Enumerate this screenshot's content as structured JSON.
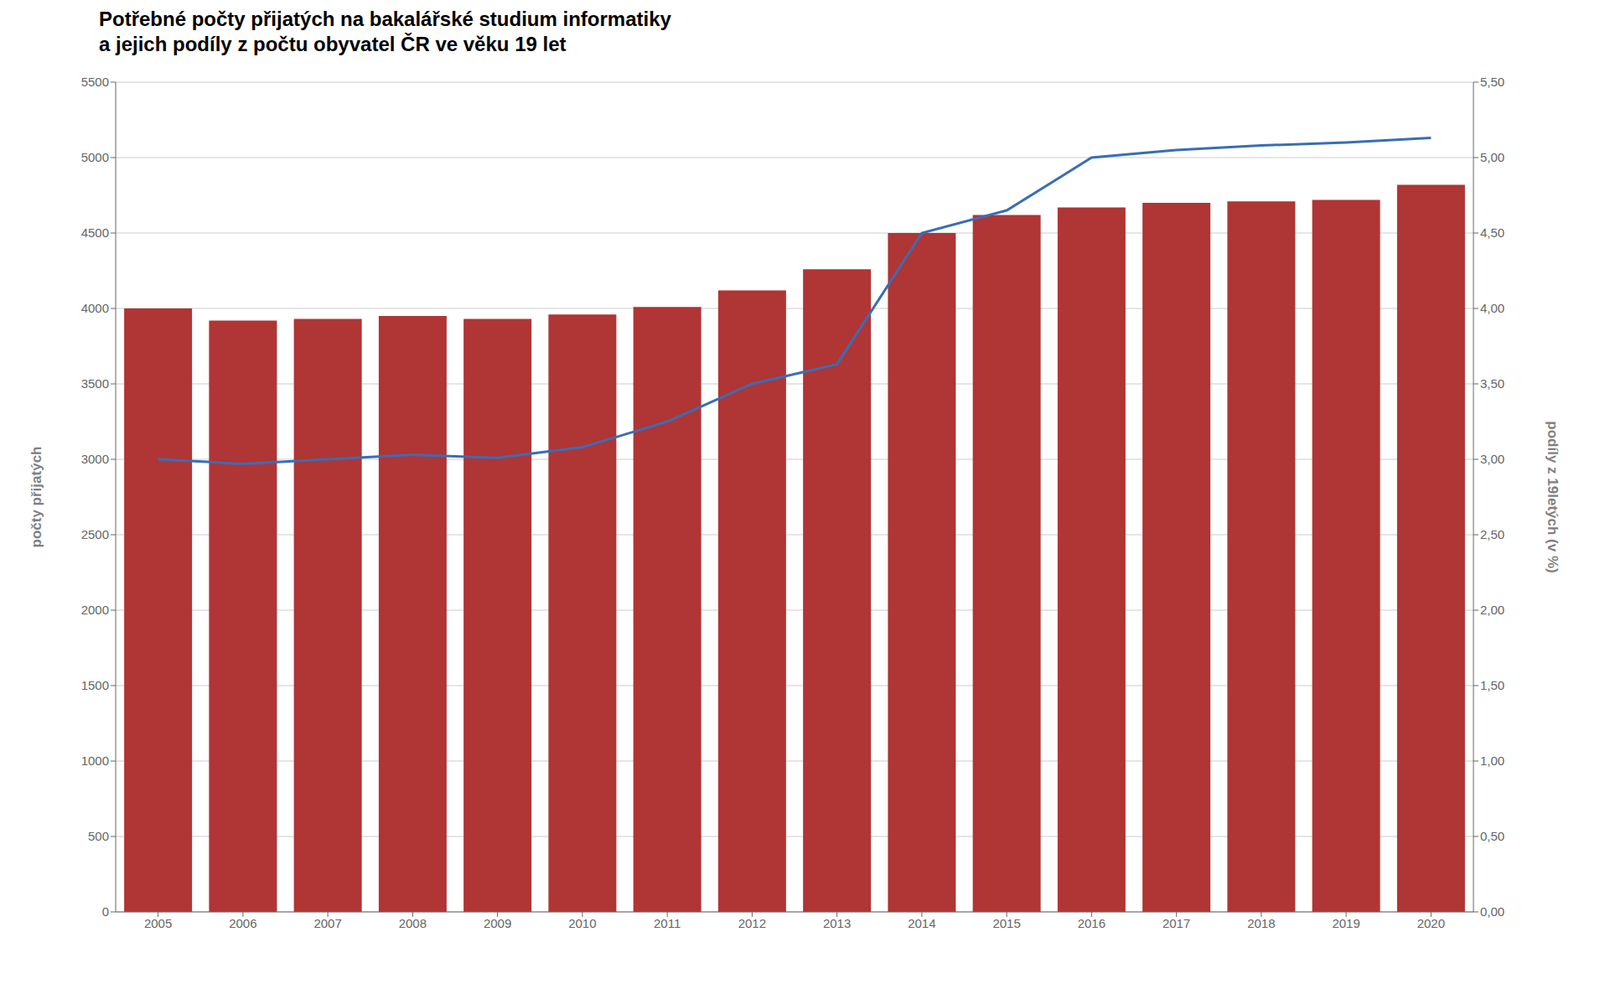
{
  "chart_data": {
    "type": "bar",
    "title": "Potřebné počty přijatých na bakalářské studium informatiky",
    "subtitle": "a jejich podíly z počtu obyvatel ČR ve věku 19 let",
    "ylabel": "počty přijatých",
    "y2label": "podíly z 19letých (v %)",
    "categories": [
      "2005",
      "2006",
      "2007",
      "2008",
      "2009",
      "2010",
      "2011",
      "2012",
      "2013",
      "2014",
      "2015",
      "2016",
      "2017",
      "2018",
      "2019",
      "2020"
    ],
    "series": [
      {
        "type": "bar",
        "color": "#B03535",
        "values": [
          4000,
          3920,
          3930,
          3950,
          3930,
          3960,
          4010,
          4120,
          4260,
          4500,
          4620,
          4670,
          4700,
          4710,
          4720,
          4820
        ]
      },
      {
        "type": "line",
        "axis": "y2",
        "color": "#3A6DB5",
        "values": [
          3.0,
          2.97,
          3.0,
          3.03,
          3.01,
          3.08,
          3.25,
          3.5,
          3.63,
          4.5,
          4.65,
          5.0,
          5.05,
          5.08,
          5.1,
          5.13
        ]
      }
    ],
    "ylim": [
      0,
      5500
    ],
    "yticks": [
      0,
      500,
      1000,
      1500,
      2000,
      2500,
      3000,
      3500,
      4000,
      4500,
      5000,
      5500
    ],
    "y2lim": [
      0,
      5.5
    ],
    "y2ticks": [
      {
        "value": 0,
        "label": "0,00"
      },
      {
        "value": 0.5,
        "label": "0,50"
      },
      {
        "value": 1.0,
        "label": "1,00"
      },
      {
        "value": 1.5,
        "label": "1,50"
      },
      {
        "value": 2.0,
        "label": "2,00"
      },
      {
        "value": 2.5,
        "label": "2,50"
      },
      {
        "value": 3.0,
        "label": "3,00"
      },
      {
        "value": 3.5,
        "label": "3,50"
      },
      {
        "value": 4.0,
        "label": "4,00"
      },
      {
        "value": 4.5,
        "label": "4,50"
      },
      {
        "value": 5.0,
        "label": "5,00"
      },
      {
        "value": 5.5,
        "label": "5,50"
      }
    ],
    "grid": "y"
  }
}
